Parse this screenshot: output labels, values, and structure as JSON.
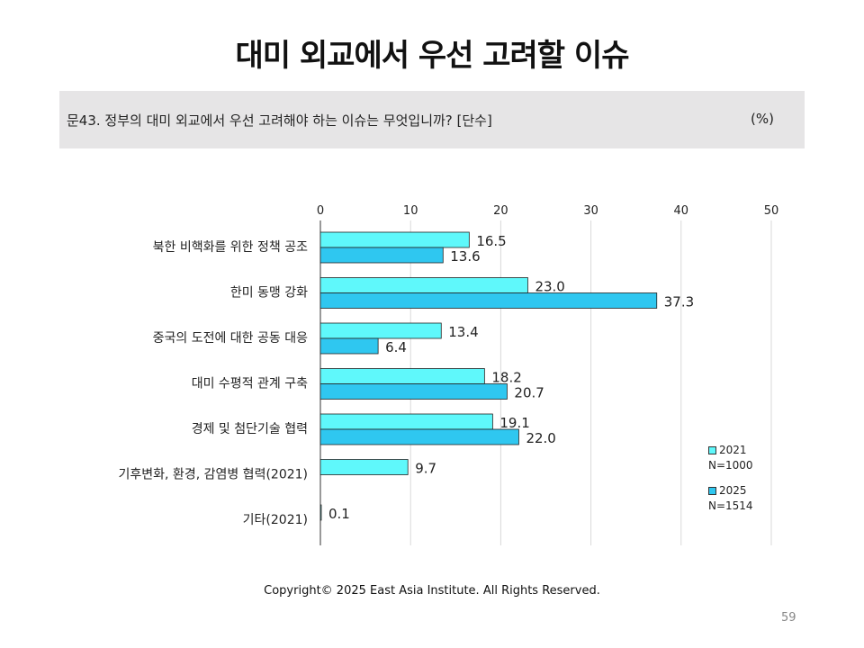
{
  "title": "대미 외교에서 우선 고려할 이슈",
  "question": "문43. 정부의 대미 외교에서 우선 고려해야 하는 이슈는 무엇입니까? [단수]",
  "unit": "(%)",
  "copyright": "Copyright© 2025 East Asia Institute. All Rights Reserved.",
  "page_number": "59",
  "colors": {
    "2021": "#5ff8fb",
    "2025": "#2fc7f0",
    "grid": "#d9d9d9",
    "bar_border": "#222222"
  },
  "legend": [
    {
      "label": "2021",
      "sub": "N=1000"
    },
    {
      "label": "2025",
      "sub": "N=1514"
    }
  ],
  "chart_data": {
    "type": "bar",
    "orientation": "horizontal",
    "categories": [
      "북한 비핵화를 위한 정책 공조",
      "한미 동맹 강화",
      "중국의 도전에 대한 공동 대응",
      "대미 수평적 관계 구축",
      "경제 및 첨단기술 협력",
      "기후변화, 환경, 감염병 협력(2021)",
      "기타(2021)"
    ],
    "series": [
      {
        "name": "2021",
        "values": [
          16.5,
          23.0,
          13.4,
          18.2,
          19.1,
          9.7,
          0.1
        ]
      },
      {
        "name": "2025",
        "values": [
          13.6,
          37.3,
          6.4,
          20.7,
          22.0,
          null,
          null
        ]
      }
    ],
    "value_labels": [
      [
        "16.5",
        "23.0",
        "13.4",
        "18.2",
        "19.1",
        "9.7",
        "0.1"
      ],
      [
        "13.6",
        "37.3",
        "6.4",
        "20.7",
        "22.0",
        "",
        ""
      ]
    ],
    "xlim": [
      0,
      50
    ],
    "xticks": [
      "0",
      "10",
      "20",
      "30",
      "40",
      "50"
    ],
    "grid": true,
    "legend_position": "right"
  }
}
